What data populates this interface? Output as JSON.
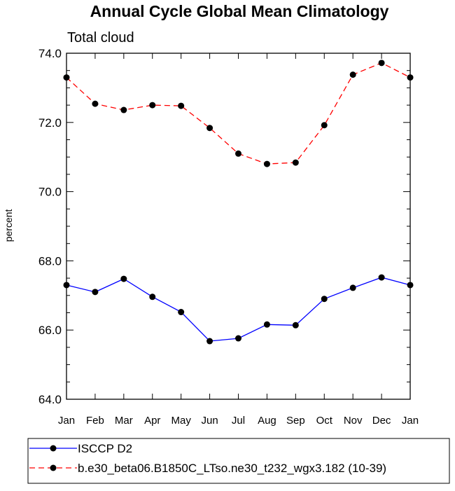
{
  "chart_data": {
    "type": "line",
    "title": "Annual Cycle Global Mean Climatology",
    "subtitle": "Total cloud",
    "xlabel": "",
    "ylabel": "percent",
    "categories": [
      "Jan",
      "Feb",
      "Mar",
      "Apr",
      "May",
      "Jun",
      "Jul",
      "Aug",
      "Sep",
      "Oct",
      "Nov",
      "Dec",
      "Jan"
    ],
    "ylim": [
      64.0,
      74.0
    ],
    "yticks": [
      "64.0",
      "66.0",
      "68.0",
      "70.0",
      "72.0",
      "74.0"
    ],
    "legend_position": "bottom",
    "grid": false,
    "series": [
      {
        "name": "ISCCP D2",
        "color": "#0000ff",
        "line_style": "solid",
        "marker": "filled-circle",
        "values": [
          67.3,
          67.1,
          67.48,
          66.96,
          66.52,
          65.68,
          65.76,
          66.16,
          66.14,
          66.9,
          67.22,
          67.52,
          67.3
        ]
      },
      {
        "name": "b.e30_beta06.B1850C_LTso.ne30_t232_wgx3.182 (10-39)",
        "color": "#ff0000",
        "line_style": "dashed",
        "marker": "filled-circle",
        "values": [
          73.3,
          72.54,
          72.36,
          72.5,
          72.48,
          71.84,
          71.1,
          70.8,
          70.84,
          71.92,
          73.38,
          73.72,
          73.3
        ]
      }
    ]
  }
}
